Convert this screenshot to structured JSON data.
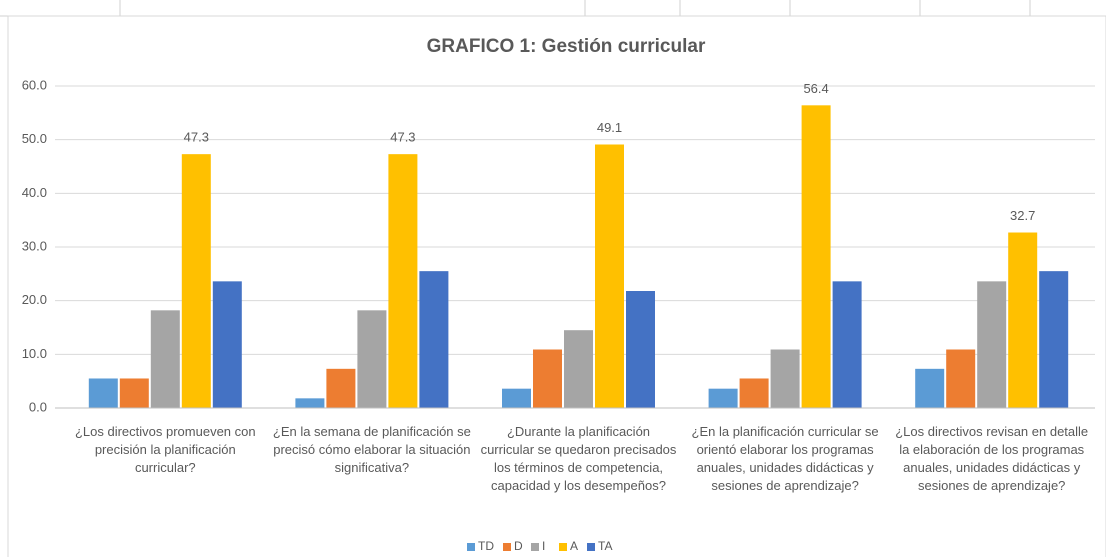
{
  "chart_data": {
    "type": "bar",
    "title": "GRAFICO 1: Gestión curricular",
    "categories": [
      "¿Los directivos promueven con precisión la planificación curricular?",
      "¿En la semana de planificación se precisó cómo elaborar la situación significativa?",
      "¿Durante la planificación curricular se quedaron precisados los términos de competencia, capacidad y los desempeños?",
      "¿En la planificación curricular se orientó elaborar los programas anuales, unidades didácticas y sesiones de aprendizaje?",
      "¿Los directivos revisan en detalle la elaboración de los programas anuales, unidades didácticas y sesiones de aprendizaje?"
    ],
    "series": [
      {
        "name": "TD",
        "color": "#5b9bd5",
        "values": [
          5.5,
          1.8,
          3.6,
          3.6,
          7.3
        ]
      },
      {
        "name": "D",
        "color": "#ed7d31",
        "values": [
          5.5,
          7.3,
          10.9,
          5.5,
          10.9
        ]
      },
      {
        "name": "I",
        "color": "#a5a5a5",
        "values": [
          18.2,
          18.2,
          14.5,
          10.9,
          23.6
        ]
      },
      {
        "name": "A",
        "color": "#ffc000",
        "values": [
          47.3,
          47.3,
          49.1,
          56.4,
          32.7
        ],
        "data_labels": true
      },
      {
        "name": "TA",
        "color": "#4472c4",
        "values": [
          23.6,
          25.5,
          21.8,
          23.6,
          25.5
        ]
      }
    ],
    "ylim": [
      0,
      60
    ],
    "yticks": [
      {
        "value": 0,
        "label": "0.0"
      },
      {
        "value": 10,
        "label": "10.0"
      },
      {
        "value": 20,
        "label": "20.0"
      },
      {
        "value": 30,
        "label": "30.0"
      },
      {
        "value": 40,
        "label": "40.0"
      },
      {
        "value": 50,
        "label": "50.0"
      },
      {
        "value": 60,
        "label": "60.0"
      }
    ],
    "grid": true,
    "legend": "bottom"
  }
}
